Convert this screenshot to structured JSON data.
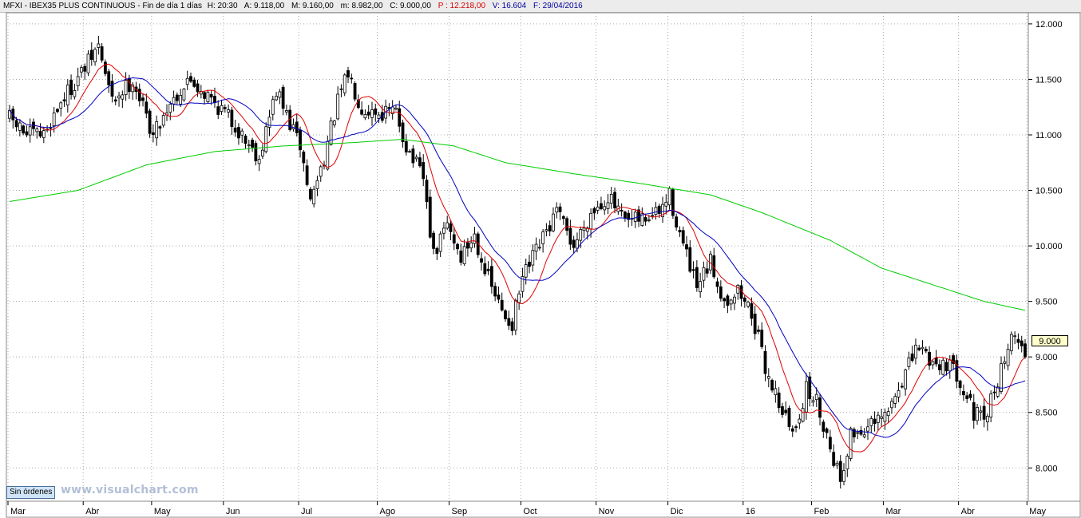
{
  "header": {
    "symbol": "MFXI - IBEX35 PLUS CONTINUOUS - Fin de día 1 días",
    "hour": "H: 20:30",
    "open": "A: 9.118,00",
    "high": "M: 9.160,00",
    "low": "m: 8.982,00",
    "close": "C: 9.000,00",
    "profit": "P : 12.218,00",
    "volume": "V: 16.604",
    "date": "F: 29/04/2016"
  },
  "price_tag": "9.000",
  "orders_button": "Sin órdenes",
  "watermark": "www.visualchart.com",
  "colors": {
    "candle": "#000000",
    "ma_short": "#e00000",
    "ma_medium": "#0000c0",
    "ma_long": "#00cc00",
    "grid": "#aaaaaa"
  },
  "chart_data": {
    "type": "candlestick",
    "title": "MFXI - IBEX35 PLUS CONTINUOUS",
    "ylim": [
      7700,
      12100
    ],
    "y_ticks": [
      8000,
      8500,
      9000,
      9500,
      10000,
      10500,
      11000,
      11500,
      12000
    ],
    "y_tick_labels": [
      "8.000",
      "8.500",
      "9.000",
      "9.500",
      "10.000",
      "10.500",
      "11.000",
      "11.500",
      "12.000"
    ],
    "grid": true,
    "x_ticks": [
      {
        "label": "Mar",
        "index": 0
      },
      {
        "label": "Abr",
        "index": 22
      },
      {
        "label": "May",
        "index": 42
      },
      {
        "label": "Jun",
        "index": 63
      },
      {
        "label": "Jul",
        "index": 85
      },
      {
        "label": "Ago",
        "index": 108
      },
      {
        "label": "Sep",
        "index": 129
      },
      {
        "label": "Oct",
        "index": 150
      },
      {
        "label": "Nov",
        "index": 172
      },
      {
        "label": "Dic",
        "index": 193
      },
      {
        "label": "16",
        "index": 215
      },
      {
        "label": "Feb",
        "index": 235
      },
      {
        "label": "Mar",
        "index": 256
      },
      {
        "label": "Abr",
        "index": 278
      },
      {
        "label": "May",
        "index": 298
      }
    ],
    "bars": 298,
    "close_anchors": [
      [
        0,
        11150
      ],
      [
        5,
        11000
      ],
      [
        10,
        11000
      ],
      [
        15,
        11300
      ],
      [
        22,
        11600
      ],
      [
        26,
        11800
      ],
      [
        30,
        11300
      ],
      [
        36,
        11500
      ],
      [
        42,
        11000
      ],
      [
        47,
        11300
      ],
      [
        53,
        11500
      ],
      [
        58,
        11350
      ],
      [
        63,
        11200
      ],
      [
        68,
        11000
      ],
      [
        73,
        10800
      ],
      [
        78,
        11400
      ],
      [
        82,
        11100
      ],
      [
        85,
        10900
      ],
      [
        88,
        10400
      ],
      [
        92,
        10800
      ],
      [
        96,
        11300
      ],
      [
        99,
        11550
      ],
      [
        103,
        11250
      ],
      [
        108,
        11200
      ],
      [
        113,
        11200
      ],
      [
        116,
        10900
      ],
      [
        121,
        10600
      ],
      [
        124,
        9900
      ],
      [
        128,
        10200
      ],
      [
        132,
        9900
      ],
      [
        136,
        10100
      ],
      [
        140,
        9700
      ],
      [
        144,
        9400
      ],
      [
        147,
        9300
      ],
      [
        150,
        9700
      ],
      [
        155,
        10000
      ],
      [
        160,
        10300
      ],
      [
        165,
        10000
      ],
      [
        170,
        10300
      ],
      [
        175,
        10450
      ],
      [
        180,
        10200
      ],
      [
        186,
        10250
      ],
      [
        190,
        10300
      ],
      [
        193,
        10450
      ],
      [
        197,
        10000
      ],
      [
        201,
        9600
      ],
      [
        205,
        9850
      ],
      [
        209,
        9500
      ],
      [
        213,
        9600
      ],
      [
        217,
        9400
      ],
      [
        221,
        8900
      ],
      [
        225,
        8600
      ],
      [
        229,
        8300
      ],
      [
        233,
        8700
      ],
      [
        236,
        8600
      ],
      [
        240,
        8200
      ],
      [
        243,
        7900
      ],
      [
        246,
        8300
      ],
      [
        250,
        8350
      ],
      [
        254,
        8400
      ],
      [
        257,
        8500
      ],
      [
        261,
        8800
      ],
      [
        266,
        9100
      ],
      [
        270,
        8950
      ],
      [
        274,
        8950
      ],
      [
        278,
        8800
      ],
      [
        282,
        8500
      ],
      [
        285,
        8400
      ],
      [
        288,
        8700
      ],
      [
        292,
        9100
      ],
      [
        295,
        9200
      ],
      [
        297,
        9000
      ]
    ],
    "last_bar": {
      "open": 9118,
      "high": 9160,
      "low": 8982,
      "close": 9000
    },
    "moving_averages": [
      {
        "period": 10,
        "color": "#e00000"
      },
      {
        "period": 20,
        "color": "#0000c0"
      },
      {
        "period": 200,
        "color": "#00cc00",
        "anchors": [
          [
            0,
            10400
          ],
          [
            20,
            10500
          ],
          [
            40,
            10730
          ],
          [
            60,
            10850
          ],
          [
            80,
            10900
          ],
          [
            100,
            10930
          ],
          [
            115,
            10960
          ],
          [
            130,
            10900
          ],
          [
            145,
            10750
          ],
          [
            165,
            10650
          ],
          [
            185,
            10560
          ],
          [
            205,
            10460
          ],
          [
            220,
            10300
          ],
          [
            240,
            10050
          ],
          [
            255,
            9800
          ],
          [
            270,
            9650
          ],
          [
            285,
            9500
          ],
          [
            297,
            9420
          ]
        ]
      }
    ]
  }
}
